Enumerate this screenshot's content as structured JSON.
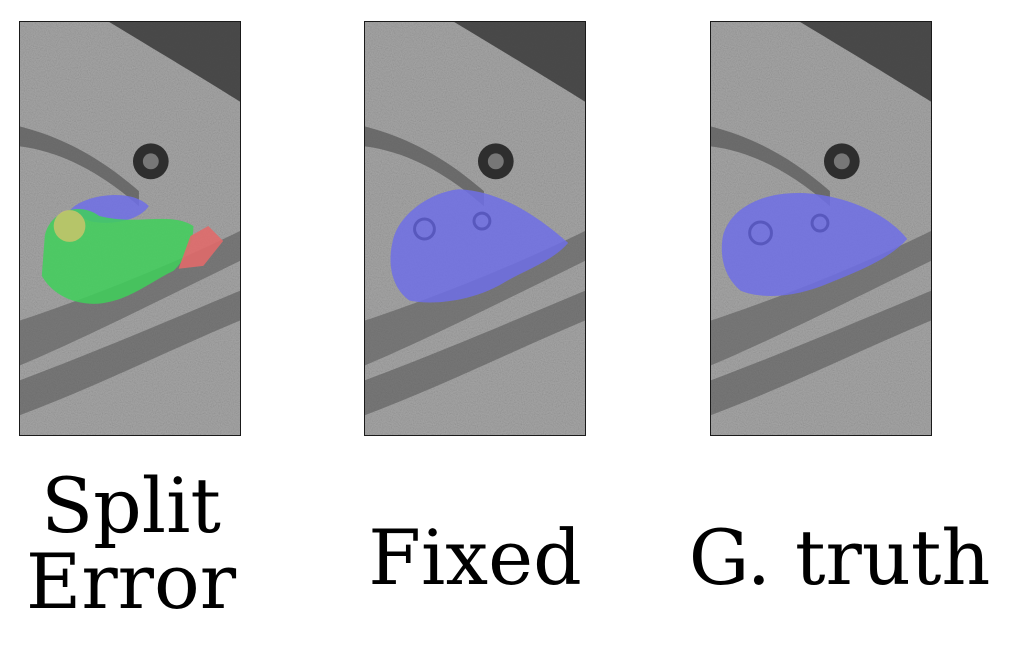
{
  "captions": {
    "split_error_line1": "Split",
    "split_error_line2": "Error",
    "fixed": "Fixed",
    "ground_truth": "G. truth"
  },
  "colors": {
    "segment_blue": "#6f6fe6",
    "segment_green": "#3fd05a",
    "segment_red": "#e06a6a",
    "segment_yellow": "#c9c46a",
    "tissue_gray": "#9a9a9a"
  }
}
